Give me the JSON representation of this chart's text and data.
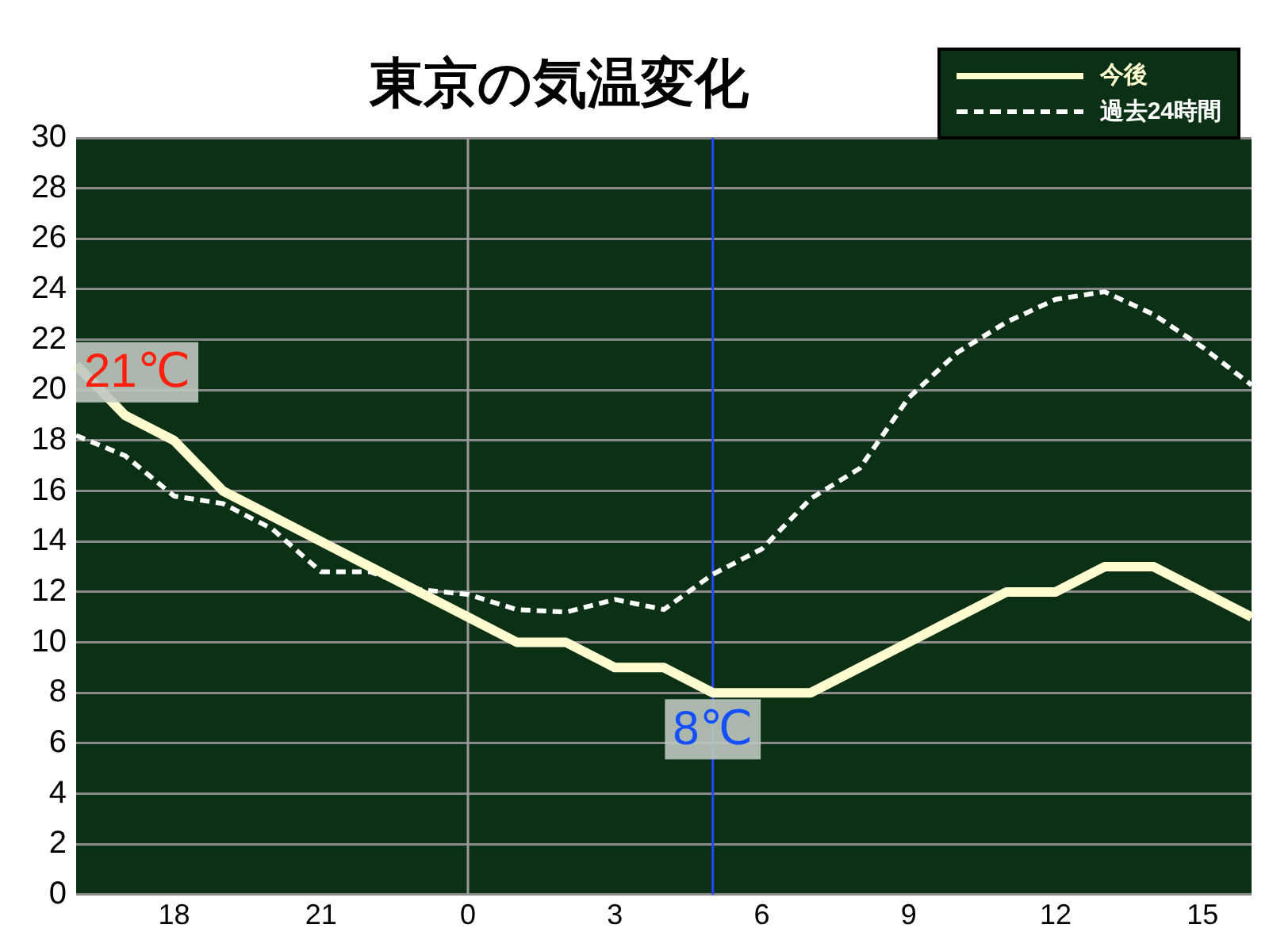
{
  "chart_data": {
    "type": "line",
    "title": "東京の気温変化",
    "categories": [
      null,
      null,
      "18",
      null,
      null,
      "21",
      null,
      null,
      "0",
      null,
      null,
      "3",
      null,
      null,
      "6",
      null,
      null,
      "9",
      null,
      null,
      "12",
      null,
      null,
      "15",
      null
    ],
    "series": [
      {
        "name": "今後",
        "color": "#fffdd0",
        "line_style": "solid",
        "values": [
          21,
          19,
          18,
          16,
          15,
          14,
          13,
          12,
          11,
          10,
          10,
          9,
          9,
          8,
          8,
          8,
          9,
          10,
          11,
          12,
          12,
          13,
          13,
          12,
          11
        ]
      },
      {
        "name": "過去24時間",
        "color": "#ffffff",
        "line_style": "dashed",
        "values": [
          18.2,
          17.4,
          15.8,
          15.5,
          14.5,
          12.8,
          12.8,
          12.1,
          11.9,
          11.3,
          11.2,
          11.7,
          11.3,
          12.7,
          13.7,
          15.7,
          16.9,
          19.7,
          21.5,
          22.7,
          23.6,
          23.9,
          23.0,
          21.7,
          20.2
        ]
      }
    ],
    "ylim": [
      0,
      30
    ],
    "yticks": [
      0,
      2,
      4,
      6,
      8,
      10,
      12,
      14,
      16,
      18,
      20,
      22,
      24,
      26,
      28,
      30
    ],
    "grid": "y",
    "legend": "top right",
    "marker": "none",
    "ref_lines": [
      {
        "axis": "x",
        "value": "0",
        "color": "#9a9a9a"
      }
    ],
    "annotations": [
      "21℃",
      {
        "text": "8℃",
        "y": 8
      }
    ]
  }
}
